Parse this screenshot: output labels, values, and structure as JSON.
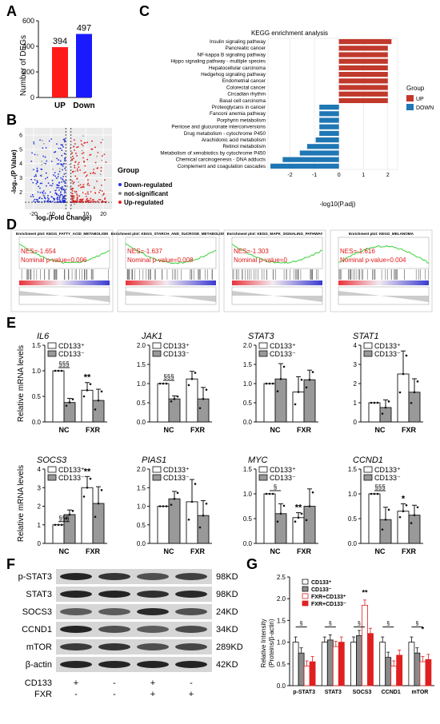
{
  "panels": {
    "A": {
      "letter": "A",
      "chart_data": {
        "type": "bar",
        "categories": [
          "UP",
          "Down"
        ],
        "values": [
          394,
          497
        ],
        "colors": [
          "#ff1a1a",
          "#1a1aff"
        ],
        "ylabel": "Number of DEGs",
        "ylim": [
          0,
          600
        ],
        "yticks": [
          0,
          200,
          400,
          600
        ]
      }
    },
    "B": {
      "letter": "B",
      "chart_data": {
        "type": "scatter",
        "xlabel": "log₂(Fold Change)",
        "ylabel": "-log₁₀(P Value)",
        "xticks": [
          -20,
          -10,
          0,
          10,
          20
        ],
        "yticks": [
          2,
          3,
          4,
          5,
          6
        ],
        "xlim": [
          -25,
          25
        ],
        "ylim": [
          0.8,
          6.5
        ],
        "legend_title": "Group",
        "legend": [
          {
            "label": "Down-regulated",
            "color": "#2233dd"
          },
          {
            "label": "not-significant",
            "color": "#888888"
          },
          {
            "label": "Up-regulated",
            "color": "#dd2222"
          }
        ]
      }
    },
    "C": {
      "letter": "C",
      "chart_data": {
        "type": "bar",
        "title": "KEGG enrichment analysis",
        "xlabel": "-log10(P.adj)",
        "xticks": [
          -2,
          -1,
          0,
          1,
          2
        ],
        "xlim": [
          -2.9,
          2.4
        ],
        "legend_title": "Group",
        "legend": [
          {
            "label": "UP",
            "color": "#c0392b"
          },
          {
            "label": "DOWN",
            "color": "#1f77b4"
          }
        ],
        "categories": [
          "Insulin signaling pathway",
          "Pancreatic cancer",
          "NF-kappa B signaling pathway",
          "Hippo signaling pathway - multiple species",
          "Hepatocellular carcinoma",
          "Hedgehog signaling pathway",
          "Endometrial cancer",
          "Colorectal cancer",
          "Circadian rhythm",
          "Basal cell carcinoma",
          "Proteoglycans in cancer",
          "Fanconi anemia pathway",
          "Porphyrin metabolism",
          "Pentose and glucuronate interconversions",
          "Drug metabolism - cytochrome P450",
          "Arachidonic acid metabolism",
          "Retinol metabolism",
          "Metabolism of xenobiotics by cytochrome P450",
          "Chemical carcinogenesis - DNA adducts",
          "Complement and coagulation cascades"
        ],
        "values": [
          2.15,
          2.0,
          2.0,
          2.0,
          2.0,
          2.0,
          2.0,
          2.0,
          2.0,
          2.0,
          -0.8,
          -0.8,
          -0.8,
          -0.8,
          -0.8,
          -0.95,
          -1.3,
          -1.6,
          -2.3,
          -2.8
        ],
        "groups": [
          "UP",
          "UP",
          "UP",
          "UP",
          "UP",
          "UP",
          "UP",
          "UP",
          "UP",
          "UP",
          "DOWN",
          "DOWN",
          "DOWN",
          "DOWN",
          "DOWN",
          "DOWN",
          "DOWN",
          "DOWN",
          "DOWN",
          "DOWN"
        ]
      }
    },
    "D": {
      "letter": "D",
      "plots": [
        {
          "title": "Enrichment plot: KEGG_FATTY_ACID_METABOLISM",
          "nes": "NES=-1.654",
          "pval": "Nominal p-value=0.006"
        },
        {
          "title": "Enrichment plot: KEGG_STARCH_AND_SUCROSE_METABOLISM",
          "nes": "NES=-1.637",
          "pval": "Nominal p-value=0.008"
        },
        {
          "title": "Enrichment plot: KEGG_MAPK_SIGNALING_PATHWAY",
          "nes": "NES=-1.303",
          "pval": "Nominal p-value=0"
        },
        {
          "title": "Enrichment plot: KEGG_MELANOMA",
          "nes": "NES=-1.616",
          "pval": "Nominal p-value=0.004"
        }
      ]
    },
    "E": {
      "letter": "E",
      "ylabel": "Relative mRNA levels",
      "legend": [
        "CD133⁺",
        "CD133⁻"
      ],
      "chart_data": [
        {
          "gene": "IL6",
          "categories": [
            "NC",
            "FXR"
          ],
          "series": [
            {
              "name": "CD133⁺",
              "values": [
                1.0,
                0.62
              ],
              "err": [
                0.0,
                0.15
              ]
            },
            {
              "name": "CD133⁻",
              "values": [
                0.38,
                0.42
              ],
              "err": [
                0.08,
                0.22
              ]
            }
          ],
          "ylim": [
            0,
            1.5
          ],
          "yticks": [
            "0.0",
            "0.5",
            "1.0",
            "1.5"
          ],
          "sig": {
            "bracket": "§§§",
            "star": "**"
          }
        },
        {
          "gene": "JAK1",
          "categories": [
            "NC",
            "FXR"
          ],
          "series": [
            {
              "name": "CD133⁺",
              "values": [
                1.0,
                1.12
              ],
              "err": [
                0.0,
                0.2
              ]
            },
            {
              "name": "CD133⁻",
              "values": [
                0.6,
                0.6
              ],
              "err": [
                0.08,
                0.3
              ]
            }
          ],
          "ylim": [
            0,
            2.0
          ],
          "yticks": [
            "0.0",
            "0.5",
            "1.0",
            "1.5",
            "2.0"
          ],
          "sig": {
            "bracket": "§§§",
            "star": ""
          }
        },
        {
          "gene": "STAT3",
          "categories": [
            "NC",
            "FXR"
          ],
          "series": [
            {
              "name": "CD133⁺",
              "values": [
                1.0,
                0.78
              ],
              "err": [
                0.0,
                0.4
              ]
            },
            {
              "name": "CD133⁻",
              "values": [
                1.12,
                1.1
              ],
              "err": [
                0.4,
                0.25
              ]
            }
          ],
          "ylim": [
            0,
            2.0
          ],
          "yticks": [
            "0.0",
            "0.5",
            "1.0",
            "1.5",
            "2.0"
          ],
          "sig": {
            "bracket": "",
            "star": ""
          }
        },
        {
          "gene": "STAT1",
          "categories": [
            "NC",
            "FXR"
          ],
          "series": [
            {
              "name": "CD133⁺",
              "values": [
                1.0,
                2.5
              ],
              "err": [
                0.0,
                1.2
              ]
            },
            {
              "name": "CD133⁻",
              "values": [
                0.75,
                1.55
              ],
              "err": [
                0.4,
                0.7
              ]
            }
          ],
          "ylim": [
            0,
            4
          ],
          "yticks": [
            "0",
            "1",
            "2",
            "3",
            "4"
          ],
          "sig": {
            "bracket": "",
            "star": ""
          }
        },
        {
          "gene": "SOCS3",
          "categories": [
            "NC",
            "FXR"
          ],
          "series": [
            {
              "name": "CD133⁺",
              "values": [
                1.0,
                3.0
              ],
              "err": [
                0.0,
                0.6
              ]
            },
            {
              "name": "CD133⁻",
              "values": [
                1.55,
                2.15
              ],
              "err": [
                0.25,
                0.9
              ]
            }
          ],
          "ylim": [
            0,
            4
          ],
          "yticks": [
            "0",
            "1",
            "2",
            "3",
            "4"
          ],
          "sig": {
            "bracket": "§§§",
            "star": "**"
          }
        },
        {
          "gene": "PIAS1",
          "categories": [
            "NC",
            "FXR"
          ],
          "series": [
            {
              "name": "CD133⁺",
              "values": [
                1.0,
                1.12
              ],
              "err": [
                0.0,
                0.6
              ]
            },
            {
              "name": "CD133⁻",
              "values": [
                1.2,
                0.75
              ],
              "err": [
                0.2,
                0.4
              ]
            }
          ],
          "ylim": [
            0,
            2.0
          ],
          "yticks": [
            "0.0",
            "0.5",
            "1.0",
            "1.5",
            "2.0"
          ],
          "sig": {
            "bracket": "",
            "star": ""
          }
        },
        {
          "gene": "MYC",
          "categories": [
            "NC",
            "FXR"
          ],
          "series": [
            {
              "name": "CD133⁺",
              "values": [
                1.0,
                0.52
              ],
              "err": [
                0.0,
                0.1
              ]
            },
            {
              "name": "CD133⁻",
              "values": [
                0.6,
                0.75
              ],
              "err": [
                0.2,
                0.35
              ]
            }
          ],
          "ylim": [
            0,
            1.5
          ],
          "yticks": [
            "0.0",
            "0.5",
            "1.0",
            "1.5"
          ],
          "sig": {
            "bracket": "§",
            "star": "**"
          }
        },
        {
          "gene": "CCND1",
          "categories": [
            "NC",
            "FXR"
          ],
          "series": [
            {
              "name": "CD133⁺",
              "values": [
                1.0,
                0.65
              ],
              "err": [
                0.0,
                0.15
              ]
            },
            {
              "name": "CD133⁻",
              "values": [
                0.48,
                0.57
              ],
              "err": [
                0.25,
                0.2
              ]
            }
          ],
          "ylim": [
            0,
            1.5
          ],
          "yticks": [
            "0.0",
            "0.5",
            "1.0",
            "1.5"
          ],
          "sig": {
            "bracket": "§§§",
            "star": "*"
          }
        }
      ]
    },
    "F": {
      "letter": "F",
      "rows": [
        {
          "label": "p-STAT3",
          "size": "98KD"
        },
        {
          "label": "STAT3",
          "size": "98KD"
        },
        {
          "label": "SOCS3",
          "size": "24KD"
        },
        {
          "label": "CCND1",
          "size": "34KD"
        },
        {
          "label": "mTOR",
          "size": "289KD"
        },
        {
          "label": "β-actin",
          "size": "42KD"
        }
      ],
      "conditions": [
        {
          "label": "CD133",
          "values": [
            "+",
            "-",
            "+",
            "-"
          ]
        },
        {
          "label": "FXR",
          "values": [
            "-",
            "-",
            "+",
            "+"
          ]
        }
      ]
    },
    "G": {
      "letter": "G",
      "chart_data": {
        "type": "bar",
        "ylabel": "Relative Intensity\n(Proteins/β-actin)",
        "ylim": [
          0,
          2.5
        ],
        "yticks": [
          "0.0",
          "0.5",
          "1.0",
          "1.5",
          "2.0",
          "2.5"
        ],
        "categories": [
          "p-STAT3",
          "STAT3",
          "SOCS3",
          "CCND1",
          "mTOR"
        ],
        "legend": [
          "CD133⁺",
          "CD133⁻",
          "FXR+CD133⁺",
          "FXR+CD133⁻"
        ],
        "series": [
          {
            "name": "CD133⁺",
            "values": [
              1.0,
              1.0,
              1.0,
              1.0,
              1.0
            ]
          },
          {
            "name": "CD133⁻",
            "values": [
              0.75,
              1.05,
              1.15,
              0.65,
              0.75
            ]
          },
          {
            "name": "FXR+CD133⁺",
            "values": [
              0.45,
              0.9,
              1.85,
              0.45,
              0.55
            ]
          },
          {
            "name": "FXR+CD133⁻",
            "values": [
              0.55,
              1.0,
              1.2,
              0.7,
              0.6
            ]
          }
        ],
        "sig_bracket": "§",
        "stars": [
          "",
          "",
          "**",
          "",
          "*"
        ]
      }
    }
  }
}
